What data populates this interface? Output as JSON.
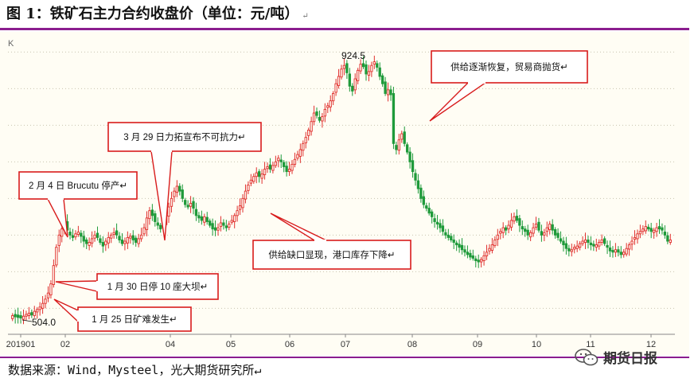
{
  "header": {
    "title": "图 1：铁矿石主力合约收盘价（单位：元/吨）",
    "return_mark": "↵"
  },
  "chart_data": {
    "type": "candlestick",
    "title": "图 1：铁矿石主力合约收盘价（单位：元/吨）",
    "chart_label": "K",
    "x_tick_labels": [
      "201901",
      "02",
      "04",
      "05",
      "06",
      "07",
      "08",
      "09",
      "10",
      "11",
      "12"
    ],
    "ylim": [
      480,
      960
    ],
    "grid": true,
    "data_labels": [
      {
        "text": "924.5",
        "x": "2019-07",
        "value": 924.5
      },
      {
        "text": "504.0",
        "x": "2019-01",
        "value": 504.0
      }
    ],
    "annotations": [
      {
        "text": "供给逐渐恢复，贸易商抛货↵"
      },
      {
        "text": "3 月 29 日力拓宣布不可抗力↵"
      },
      {
        "text": "2 月 4 日 Brucutu 停产↵"
      },
      {
        "text": "供给缺口显现，港口库存下降↵"
      },
      {
        "text": "1 月 30 日停 10 座大坝↵"
      },
      {
        "text": "1 月 25 日矿难发生↵"
      }
    ],
    "series_colors": {
      "up": "#e0312e",
      "down": "#1e9a3a"
    },
    "approx_close": [
      508,
      506,
      505,
      504,
      507,
      510,
      512,
      509,
      515,
      518,
      522,
      528,
      535,
      545,
      560,
      590,
      620,
      640,
      650,
      660,
      648,
      640,
      636,
      642,
      645,
      638,
      630,
      626,
      628,
      634,
      640,
      636,
      628,
      622,
      630,
      636,
      640,
      644,
      640,
      632,
      626,
      630,
      636,
      638,
      632,
      628,
      634,
      640,
      652,
      668,
      680,
      672,
      662,
      656,
      650,
      660,
      672,
      686,
      700,
      712,
      720,
      712,
      700,
      690,
      686,
      692,
      684,
      672,
      668,
      664,
      670,
      662,
      656,
      650,
      648,
      652,
      660,
      656,
      652,
      658,
      664,
      672,
      680,
      688,
      700,
      712,
      722,
      730,
      736,
      742,
      736,
      740,
      748,
      752,
      748,
      754,
      760,
      766,
      760,
      752,
      744,
      748,
      756,
      764,
      772,
      780,
      790,
      800,
      812,
      826,
      840,
      836,
      828,
      834,
      846,
      852,
      860,
      872,
      888,
      900,
      912,
      918,
      906,
      884,
      876,
      896,
      910,
      920,
      916,
      904,
      908,
      918,
      924,
      915,
      900,
      888,
      872,
      878,
      870,
      790,
      780,
      796,
      806,
      790,
      776,
      760,
      744,
      730,
      716,
      700,
      690,
      684,
      676,
      670,
      662,
      658,
      652,
      646,
      640,
      636,
      632,
      628,
      624,
      620,
      616,
      612,
      608,
      604,
      602,
      598,
      596,
      600,
      606,
      612,
      618,
      624,
      632,
      640,
      646,
      652,
      648,
      656,
      664,
      670,
      664,
      656,
      650,
      646,
      640,
      644,
      652,
      658,
      648,
      640,
      644,
      652,
      658,
      648,
      640,
      636,
      630,
      624,
      618,
      614,
      616,
      620,
      622,
      626,
      630,
      632,
      628,
      624,
      622,
      624,
      628,
      632,
      626,
      620,
      614,
      612,
      616,
      612,
      608,
      612,
      618,
      624,
      630,
      636,
      642,
      646,
      650,
      654,
      650,
      646,
      648,
      652,
      650,
      648,
      640,
      630,
      632
    ]
  },
  "footer": {
    "source": "数据来源：Wind，Mysteel，光大期货研究所↵",
    "watermark": "期货日报"
  }
}
